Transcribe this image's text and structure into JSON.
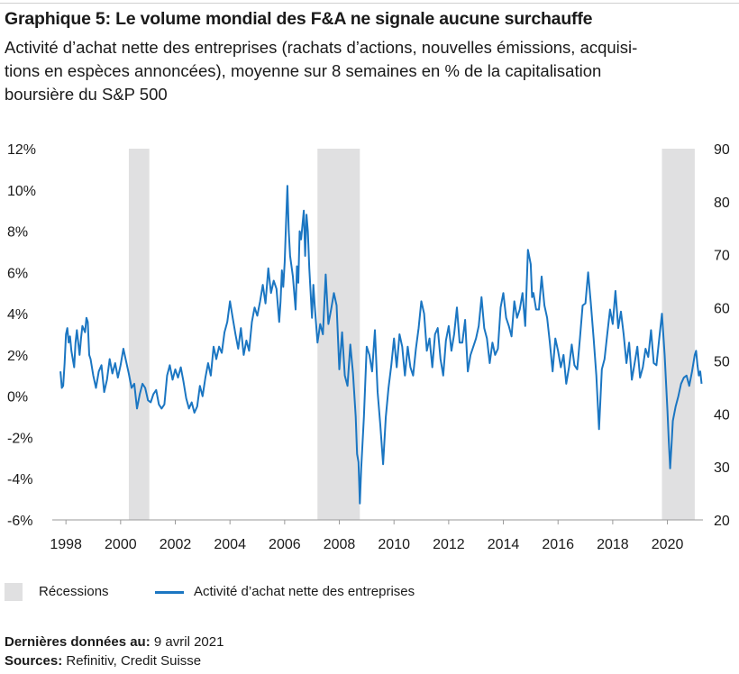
{
  "header": {
    "title": "Graphique 5: Le volume mondial des F&A ne signale aucune surchauffe",
    "subtitle_lines": [
      "Activité d’achat nette des entreprises (rachats d’actions, nouvelles émissions, acquisi-",
      "tions en espèces annoncées), moyenne sur 8 semaines en % de la capitalisation",
      "boursière du S&P 500"
    ]
  },
  "legend": {
    "recessions": "Récessions",
    "series": "Activité d’achat nette des entreprises"
  },
  "footer": {
    "last_data_label": "Dernières données au:",
    "last_data_value": "9 avril 2021",
    "sources_label": "Sources:",
    "sources_value": "Refinitiv, Credit Suisse"
  },
  "colors": {
    "line": "#1b76c2",
    "recession": "#e0e0e1",
    "axis_text": "#1a1a1a"
  },
  "chart_data": {
    "type": "line",
    "xlim": [
      1997.5,
      2021.3
    ],
    "ylim": [
      -6,
      12
    ],
    "ylim_right": [
      20,
      90
    ],
    "x_ticks": [
      1998,
      2000,
      2002,
      2004,
      2006,
      2008,
      2010,
      2012,
      2014,
      2016,
      2018,
      2020
    ],
    "x_tick_labels": [
      "1998",
      "2000",
      "2002",
      "2004",
      "2006",
      "2008",
      "2010",
      "2012",
      "2014",
      "2016",
      "2018",
      "2020"
    ],
    "y_ticks": [
      12,
      10,
      8,
      6,
      4,
      2,
      0,
      -2,
      -4,
      -6
    ],
    "y_tick_labels": [
      "12%",
      "10%",
      "8%",
      "6%",
      "4%",
      "2%",
      "0%",
      "-2%",
      "-4%",
      "-6%"
    ],
    "y_right_ticks": [
      90,
      80,
      70,
      60,
      50,
      40,
      30,
      20
    ],
    "y_right_tick_labels": [
      "90",
      "80",
      "70",
      "60",
      "50",
      "40",
      "30",
      "20"
    ],
    "grid": "none",
    "recessions": [
      {
        "start": 2000.3,
        "end": 2001.05
      },
      {
        "start": 2007.2,
        "end": 2008.75
      },
      {
        "start": 2019.8,
        "end": 2021.0
      }
    ],
    "series": [
      {
        "x": [
          1997.8,
          1997.85,
          1997.9,
          1997.95,
          1998.0,
          1998.05,
          1998.1,
          1998.15,
          1998.2,
          1998.3,
          1998.35,
          1998.4,
          1998.5,
          1998.55,
          1998.6,
          1998.7,
          1998.75,
          1998.8,
          1998.85,
          1998.9,
          1999.0,
          1999.1,
          1999.2,
          1999.3,
          1999.4,
          1999.5,
          1999.6,
          1999.7,
          1999.8,
          1999.9,
          2000.0,
          2000.1,
          2000.2,
          2000.3,
          2000.4,
          2000.5,
          2000.6,
          2000.7,
          2000.8,
          2000.9,
          2001.0,
          2001.1,
          2001.2,
          2001.3,
          2001.4,
          2001.5,
          2001.6,
          2001.7,
          2001.8,
          2001.9,
          2002.0,
          2002.1,
          2002.2,
          2002.3,
          2002.4,
          2002.5,
          2002.6,
          2002.7,
          2002.8,
          2002.9,
          2003.0,
          2003.1,
          2003.2,
          2003.3,
          2003.4,
          2003.5,
          2003.6,
          2003.7,
          2003.8,
          2003.9,
          2004.0,
          2004.1,
          2004.2,
          2004.3,
          2004.4,
          2004.5,
          2004.6,
          2004.7,
          2004.8,
          2004.9,
          2005.0,
          2005.1,
          2005.2,
          2005.3,
          2005.4,
          2005.5,
          2005.6,
          2005.7,
          2005.8,
          2005.85,
          2005.9,
          2005.95,
          2006.0,
          2006.05,
          2006.1,
          2006.15,
          2006.2,
          2006.3,
          2006.4,
          2006.45,
          2006.5,
          2006.55,
          2006.6,
          2006.7,
          2006.75,
          2006.8,
          2006.85,
          2006.9,
          2007.0,
          2007.05,
          2007.1,
          2007.2,
          2007.3,
          2007.4,
          2007.5,
          2007.6,
          2007.7,
          2007.8,
          2007.9,
          2008.0,
          2008.1,
          2008.2,
          2008.3,
          2008.4,
          2008.5,
          2008.6,
          2008.65,
          2008.7,
          2008.75,
          2008.8,
          2008.9,
          2009.0,
          2009.1,
          2009.2,
          2009.3,
          2009.4,
          2009.5,
          2009.6,
          2009.7,
          2009.8,
          2009.9,
          2010.0,
          2010.1,
          2010.2,
          2010.3,
          2010.4,
          2010.5,
          2010.6,
          2010.7,
          2010.8,
          2010.9,
          2011.0,
          2011.1,
          2011.2,
          2011.3,
          2011.4,
          2011.5,
          2011.6,
          2011.7,
          2011.8,
          2011.9,
          2012.0,
          2012.1,
          2012.2,
          2012.3,
          2012.4,
          2012.5,
          2012.6,
          2012.7,
          2012.8,
          2012.9,
          2013.0,
          2013.1,
          2013.2,
          2013.3,
          2013.4,
          2013.5,
          2013.6,
          2013.7,
          2013.8,
          2013.9,
          2014.0,
          2014.1,
          2014.2,
          2014.3,
          2014.4,
          2014.5,
          2014.6,
          2014.7,
          2014.8,
          2014.9,
          2015.0,
          2015.05,
          2015.1,
          2015.2,
          2015.3,
          2015.4,
          2015.5,
          2015.6,
          2015.7,
          2015.8,
          2015.9,
          2016.0,
          2016.1,
          2016.2,
          2016.3,
          2016.4,
          2016.5,
          2016.6,
          2016.7,
          2016.8,
          2016.9,
          2017.0,
          2017.1,
          2017.2,
          2017.3,
          2017.4,
          2017.5,
          2017.6,
          2017.7,
          2017.8,
          2017.9,
          2018.0,
          2018.1,
          2018.2,
          2018.3,
          2018.4,
          2018.5,
          2018.6,
          2018.7,
          2018.8,
          2018.9,
          2019.0,
          2019.1,
          2019.2,
          2019.3,
          2019.4,
          2019.5,
          2019.6,
          2019.7,
          2019.8,
          2019.9,
          2020.0,
          2020.05,
          2020.1,
          2020.15,
          2020.2,
          2020.3,
          2020.4,
          2020.5,
          2020.6,
          2020.7,
          2020.8,
          2020.9,
          2021.0,
          2021.05,
          2021.1,
          2021.15,
          2021.2,
          2021.25
        ],
        "values": [
          1.2,
          0.4,
          0.5,
          1.6,
          3.0,
          3.3,
          2.6,
          2.9,
          2.2,
          1.4,
          2.6,
          3.2,
          2.0,
          2.8,
          3.4,
          3.1,
          3.8,
          3.6,
          2.0,
          1.8,
          1.0,
          0.4,
          1.2,
          1.5,
          0.2,
          0.8,
          1.8,
          1.1,
          1.6,
          0.9,
          1.5,
          2.3,
          1.7,
          1.1,
          0.4,
          0.6,
          -0.6,
          0.1,
          0.6,
          0.4,
          -0.2,
          -0.3,
          0.1,
          0.3,
          -0.4,
          -0.6,
          -0.4,
          1.0,
          1.5,
          0.8,
          1.3,
          0.9,
          1.4,
          0.7,
          -0.1,
          -0.6,
          -0.3,
          -0.8,
          -0.5,
          0.5,
          0.0,
          0.9,
          1.6,
          1.0,
          2.4,
          1.8,
          2.4,
          2.1,
          3.1,
          3.6,
          4.6,
          3.8,
          3.0,
          2.3,
          3.3,
          2.0,
          2.7,
          2.2,
          3.6,
          4.3,
          3.9,
          4.6,
          5.4,
          4.5,
          6.2,
          5.0,
          5.6,
          5.2,
          3.6,
          4.6,
          6.1,
          5.3,
          6.5,
          8.4,
          10.2,
          8.0,
          6.8,
          5.8,
          4.2,
          6.3,
          5.5,
          8.0,
          7.6,
          9.0,
          6.8,
          8.8,
          8.0,
          6.2,
          3.8,
          5.4,
          4.4,
          2.6,
          3.5,
          3.0,
          5.9,
          3.5,
          4.2,
          5.0,
          4.4,
          1.3,
          3.1,
          1.0,
          0.5,
          2.5,
          1.1,
          -1.0,
          -2.8,
          -3.2,
          -5.2,
          -3.5,
          -1.0,
          2.4,
          2.0,
          1.2,
          3.2,
          0.2,
          -1.4,
          -3.3,
          -1.0,
          0.4,
          1.5,
          2.8,
          1.4,
          3.0,
          2.4,
          1.0,
          2.4,
          1.4,
          1.0,
          2.3,
          3.3,
          4.6,
          4.0,
          2.2,
          2.8,
          1.4,
          3.0,
          3.3,
          1.8,
          1.0,
          2.7,
          3.4,
          2.2,
          3.0,
          4.3,
          2.6,
          2.6,
          3.7,
          1.2,
          2.0,
          2.4,
          2.8,
          3.4,
          4.8,
          3.3,
          2.8,
          1.6,
          2.6,
          2.0,
          2.3,
          4.3,
          5.0,
          3.8,
          3.4,
          2.9,
          4.6,
          3.8,
          4.2,
          5.0,
          3.4,
          7.1,
          6.4,
          4.8,
          5.0,
          4.2,
          4.2,
          5.8,
          4.4,
          3.8,
          2.6,
          1.2,
          2.8,
          2.2,
          1.4,
          2.0,
          0.6,
          1.4,
          2.5,
          1.5,
          1.3,
          2.8,
          4.4,
          4.5,
          6.0,
          4.5,
          2.8,
          1.0,
          -1.6,
          1.3,
          1.8,
          3.0,
          4.2,
          3.5,
          5.1,
          3.3,
          4.1,
          3.0,
          1.6,
          2.6,
          0.8,
          1.6,
          2.4,
          0.9,
          1.4,
          2.3,
          1.9,
          3.2,
          1.6,
          1.5,
          2.8,
          4.0,
          2.0,
          -0.7,
          -2.2,
          -3.5,
          -2.4,
          -1.2,
          -0.5,
          0.0,
          0.6,
          0.9,
          1.0,
          0.5,
          1.2,
          2.0,
          2.2,
          1.5,
          1.0,
          1.2,
          0.6
        ]
      }
    ]
  }
}
